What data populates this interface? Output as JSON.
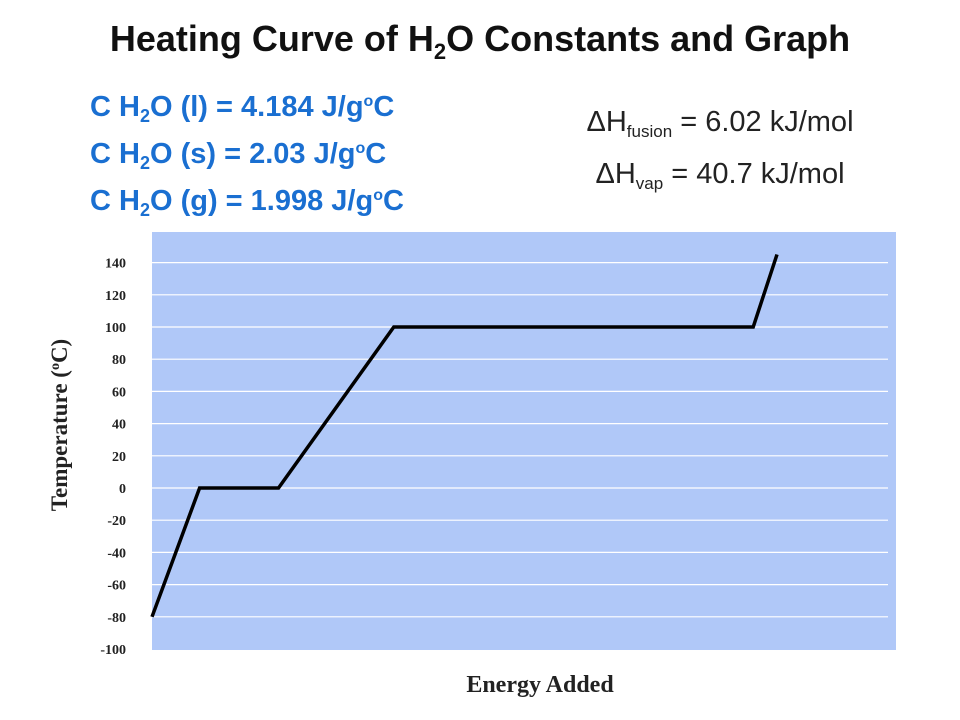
{
  "title": {
    "prefix": "Heating Curve of H",
    "sub": "2",
    "suffix": "O Constants and Graph"
  },
  "constants": [
    {
      "prefix": "C H",
      "sub": "2",
      "mid": "O (l) = 4.184 J/g",
      "sup": "o",
      "suffix": "C"
    },
    {
      "prefix": "C H",
      "sub": "2",
      "mid": "O (s) = 2.03 J/g",
      "sup": "o",
      "suffix": "C"
    },
    {
      "prefix": "C H",
      "sub": "2",
      "mid": "O (g) = 1.998 J/g",
      "sup": "o",
      "suffix": "C"
    }
  ],
  "enthalpy": [
    {
      "prefix": "ΔH",
      "sub": "fusion",
      "suffix": " = 6.02 kJ/mol"
    },
    {
      "prefix": "ΔH",
      "sub": "vap",
      "suffix": " = 40.7 kJ/mol"
    }
  ],
  "colors": {
    "plot_bg": "#b0c8f8",
    "grid": "#ffffff",
    "line": "#000000",
    "constants_text": "#1a6fd1"
  },
  "chart_data": {
    "type": "line",
    "title": "Heating Curve of H2O Constants and Graph",
    "xlabel": "Energy Added",
    "ylabel": {
      "prefix": "Temperature (",
      "sup": "o",
      "suffix": "C)"
    },
    "ylim": [
      -100,
      140
    ],
    "yticks": [
      -100,
      -80,
      -60,
      -40,
      -20,
      0,
      20,
      40,
      60,
      80,
      100,
      120,
      140
    ],
    "ytick_labels": [
      "-100",
      "-80",
      "-60",
      "-40",
      "-20",
      "0",
      "20",
      "40",
      "60",
      "80",
      "100",
      "120",
      "140"
    ],
    "grid": true,
    "xlim": [
      0,
      100
    ],
    "series": [
      {
        "x": [
          0,
          6.4,
          17,
          32.5,
          80.8,
          84
        ],
        "y": [
          -80,
          0,
          0,
          100,
          100,
          145
        ]
      }
    ]
  }
}
